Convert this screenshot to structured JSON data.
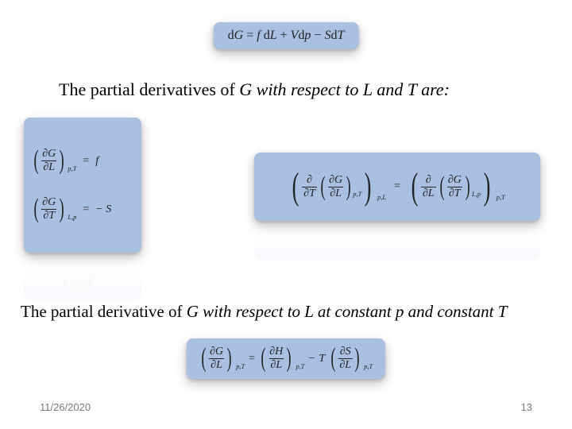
{
  "box_bg": "#a9c0e2",
  "page_bg": "#ffffff",
  "text_color": "#222222",
  "footer": {
    "date": "11/26/2020",
    "page": "13"
  },
  "caption1": {
    "pre": "The partial derivatives of ",
    "g": "G",
    "mid": " with respect to ",
    "l": "L",
    "and_word": " and ",
    "t": "T",
    "post": " are:"
  },
  "caption2": {
    "pre": "The partial derivative of ",
    "g": "G",
    "mid": " with respect to ",
    "l": "L",
    "at": " at constant ",
    "p": "p",
    "and_word": " and constant ",
    "t": "T"
  },
  "eq_top": {
    "lhs_d": "d",
    "lhs_G": "G",
    "eq": " = ",
    "t1_f": "f",
    "t1_d": " d",
    "t1_L": "L",
    "plus": " + ",
    "t2_V": "V",
    "t2_d": "d",
    "t2_p": "p",
    "minus": " − ",
    "t3_S": "S",
    "t3_d": "d",
    "t3_T": "T"
  },
  "eq_left1": {
    "dG": "∂G",
    "dL": "∂L",
    "sub": "p,T",
    "eq": "=",
    "rhs": "f"
  },
  "eq_left2": {
    "dG": "∂G",
    "dT": "∂T",
    "sub": "L,p",
    "eq": "=",
    "rhs": "− S"
  },
  "eq_right": {
    "outer_d1": "∂",
    "outer_T": "∂T",
    "inner_dG": "∂G",
    "inner_dL": "∂L",
    "inner_sub": "p,T",
    "outer_sub1": "p,L",
    "eq": "=",
    "outer_d2": "∂",
    "outer_L": "∂L",
    "inner2_dG": "∂G",
    "inner2_dT": "∂T",
    "inner2_sub": "L,p",
    "outer_sub2": "p,T"
  },
  "eq_bottom": {
    "lhs_dG": "∂G",
    "lhs_dL": "∂L",
    "lhs_sub": "p,T",
    "eq1": "=",
    "mid_dH": "∂H",
    "mid_dL": "∂L",
    "mid_sub": "p,T",
    "minus": "−",
    "T": "T",
    "rhs_dS": "∂S",
    "rhs_dL": "∂L",
    "rhs_sub": "p,T"
  }
}
